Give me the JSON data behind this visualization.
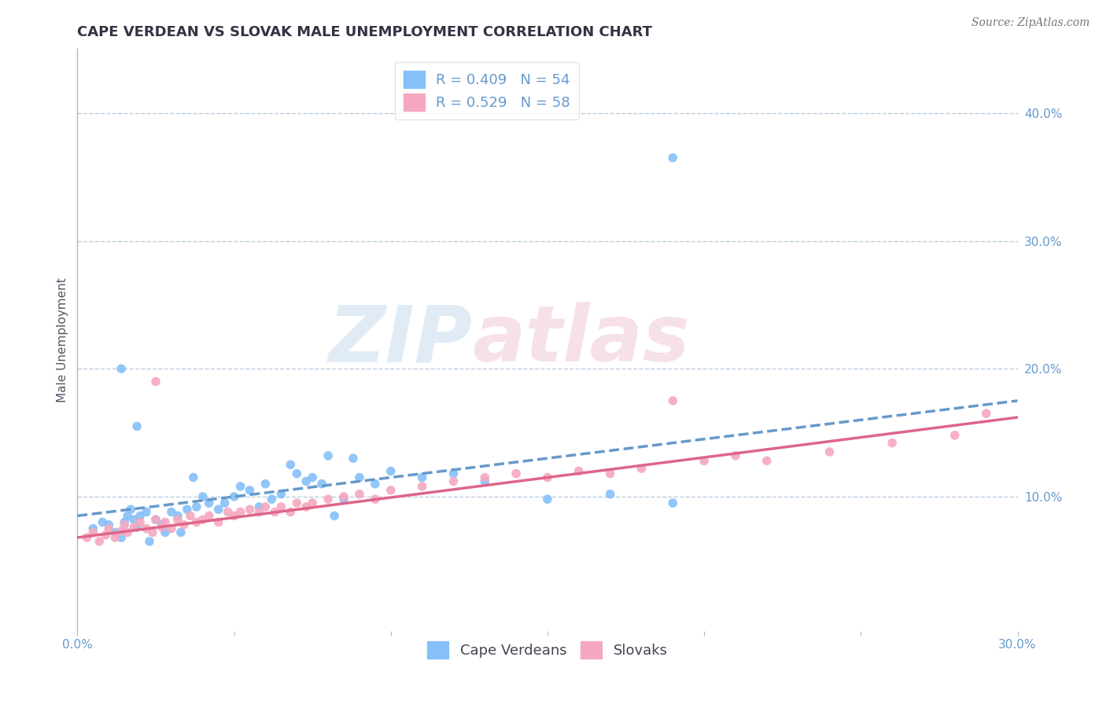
{
  "title": "CAPE VERDEAN VS SLOVAK MALE UNEMPLOYMENT CORRELATION CHART",
  "source": "Source: ZipAtlas.com",
  "ylabel": "Male Unemployment",
  "xlim": [
    0.0,
    0.3
  ],
  "ylim": [
    -0.005,
    0.45
  ],
  "xticks": [
    0.0,
    0.05,
    0.1,
    0.15,
    0.2,
    0.25,
    0.3
  ],
  "yticks": [
    0.0,
    0.1,
    0.2,
    0.3,
    0.4
  ],
  "ytick_labels": [
    "",
    "10.0%",
    "20.0%",
    "30.0%",
    "40.0%"
  ],
  "xtick_labels": [
    "0.0%",
    "",
    "",
    "",
    "",
    "",
    "30.0%"
  ],
  "legend_r1": "R = 0.409   N = 54",
  "legend_r2": "R = 0.529   N = 58",
  "blue_color": "#85C0F9",
  "pink_color": "#F5A8C0",
  "blue_line_color": "#6699CC",
  "pink_line_color": "#DD6688",
  "watermark1": "ZIP",
  "watermark2": "atlas",
  "title_fontsize": 13,
  "axis_label_fontsize": 11,
  "tick_fontsize": 11,
  "legend_fontsize": 13,
  "source_fontsize": 10,
  "background_color": "#FFFFFF",
  "grid_color": "#BBCCDD",
  "axis_color": "#AABBCC",
  "blue_scatter_x": [
    0.005,
    0.008,
    0.01,
    0.012,
    0.014,
    0.015,
    0.016,
    0.017,
    0.018,
    0.019,
    0.02,
    0.022,
    0.023,
    0.025,
    0.027,
    0.028,
    0.03,
    0.032,
    0.033,
    0.035,
    0.037,
    0.038,
    0.04,
    0.042,
    0.045,
    0.047,
    0.05,
    0.052,
    0.055,
    0.058,
    0.06,
    0.062,
    0.065,
    0.068,
    0.07,
    0.073,
    0.075,
    0.078,
    0.08,
    0.082,
    0.085,
    0.088,
    0.09,
    0.095,
    0.1,
    0.11,
    0.12,
    0.13,
    0.15,
    0.17,
    0.19,
    0.014,
    0.019,
    0.19
  ],
  "blue_scatter_y": [
    0.075,
    0.08,
    0.078,
    0.072,
    0.068,
    0.08,
    0.085,
    0.09,
    0.082,
    0.076,
    0.085,
    0.088,
    0.065,
    0.082,
    0.078,
    0.072,
    0.088,
    0.085,
    0.072,
    0.09,
    0.115,
    0.092,
    0.1,
    0.095,
    0.09,
    0.095,
    0.1,
    0.108,
    0.105,
    0.092,
    0.11,
    0.098,
    0.102,
    0.125,
    0.118,
    0.112,
    0.115,
    0.11,
    0.132,
    0.085,
    0.098,
    0.13,
    0.115,
    0.11,
    0.12,
    0.115,
    0.118,
    0.112,
    0.098,
    0.102,
    0.095,
    0.2,
    0.155,
    0.365
  ],
  "pink_scatter_x": [
    0.003,
    0.005,
    0.007,
    0.009,
    0.01,
    0.012,
    0.014,
    0.015,
    0.016,
    0.018,
    0.02,
    0.022,
    0.024,
    0.025,
    0.027,
    0.028,
    0.03,
    0.032,
    0.034,
    0.036,
    0.038,
    0.04,
    0.042,
    0.045,
    0.048,
    0.05,
    0.052,
    0.055,
    0.058,
    0.06,
    0.063,
    0.065,
    0.068,
    0.07,
    0.073,
    0.075,
    0.08,
    0.085,
    0.09,
    0.095,
    0.1,
    0.11,
    0.12,
    0.13,
    0.14,
    0.15,
    0.16,
    0.17,
    0.18,
    0.19,
    0.2,
    0.21,
    0.22,
    0.24,
    0.26,
    0.28,
    0.29,
    0.025
  ],
  "pink_scatter_y": [
    0.068,
    0.072,
    0.065,
    0.07,
    0.075,
    0.068,
    0.073,
    0.078,
    0.072,
    0.076,
    0.08,
    0.075,
    0.072,
    0.082,
    0.076,
    0.08,
    0.075,
    0.082,
    0.078,
    0.085,
    0.08,
    0.082,
    0.085,
    0.08,
    0.088,
    0.085,
    0.088,
    0.09,
    0.088,
    0.092,
    0.088,
    0.092,
    0.088,
    0.095,
    0.092,
    0.095,
    0.098,
    0.1,
    0.102,
    0.098,
    0.105,
    0.108,
    0.112,
    0.115,
    0.118,
    0.115,
    0.12,
    0.118,
    0.122,
    0.175,
    0.128,
    0.132,
    0.128,
    0.135,
    0.142,
    0.148,
    0.165,
    0.19
  ],
  "blue_trend_x": [
    0.0,
    0.3
  ],
  "blue_trend_y_start": 0.085,
  "blue_trend_y_end": 0.175,
  "pink_trend_x": [
    0.0,
    0.3
  ],
  "pink_trend_y_start": 0.068,
  "pink_trend_y_end": 0.162
}
